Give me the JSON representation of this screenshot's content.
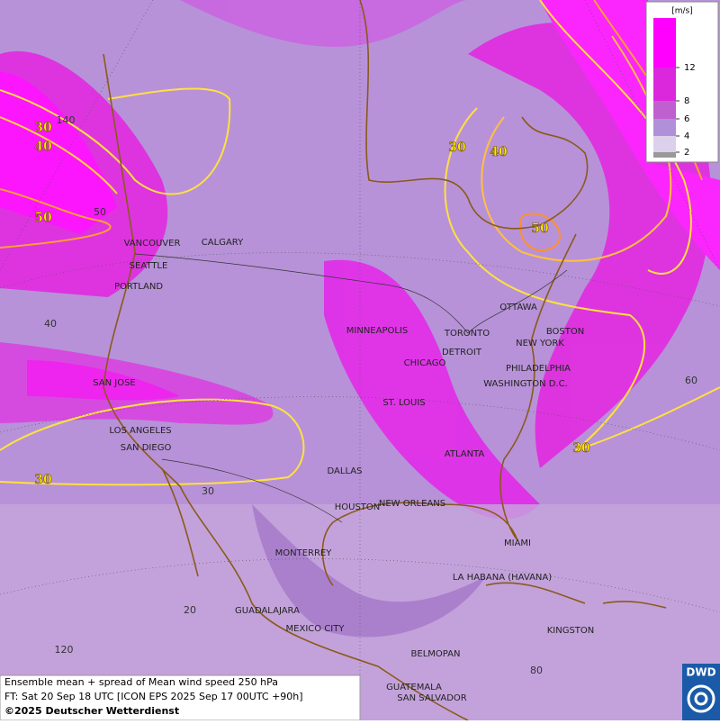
{
  "legend": {
    "unit": "[m/s]",
    "ticks": [
      2,
      4,
      6,
      8,
      12
    ]
  },
  "cities": [
    "VANCOUVER",
    "CALGARY",
    "SEATTLE",
    "PORTLAND",
    "MINNEAPOLIS",
    "TORONTO",
    "DETROIT",
    "CHICAGO",
    "OTTAWA",
    "BOSTON",
    "NEW YORK",
    "PHILADELPHIA",
    "WASHINGTON D.C.",
    "ST. LOUIS",
    "SAN JOSE",
    "LOS ANGELES",
    "SAN DIEGO",
    "ATLANTA",
    "DALLAS",
    "HOUSTON",
    "NEW ORLEANS",
    "MIAMI",
    "MONTERREY",
    "LA HABANA (HAVANA)",
    "GUADALAJARA",
    "MEXICO CITY",
    "KINGSTON",
    "BELMOPAN",
    "GUATEMALA",
    "SAN SALVADOR"
  ],
  "contour_labels": [
    "30",
    "40",
    "50",
    "30",
    "40",
    "50",
    "30",
    "30"
  ],
  "grid_labels": [
    "140",
    "50",
    "40",
    "30",
    "20",
    "120",
    "80",
    "60"
  ],
  "caption": {
    "line1": "Ensemble mean + spread of Mean wind speed 250 hPa",
    "line2": "FT: Sat 20 Sep 18 UTC [ICON EPS 2025 Sep 17 00UTC +90h]",
    "line3": "©2025 Deutscher Wetterdienst"
  },
  "logo": "DWD"
}
